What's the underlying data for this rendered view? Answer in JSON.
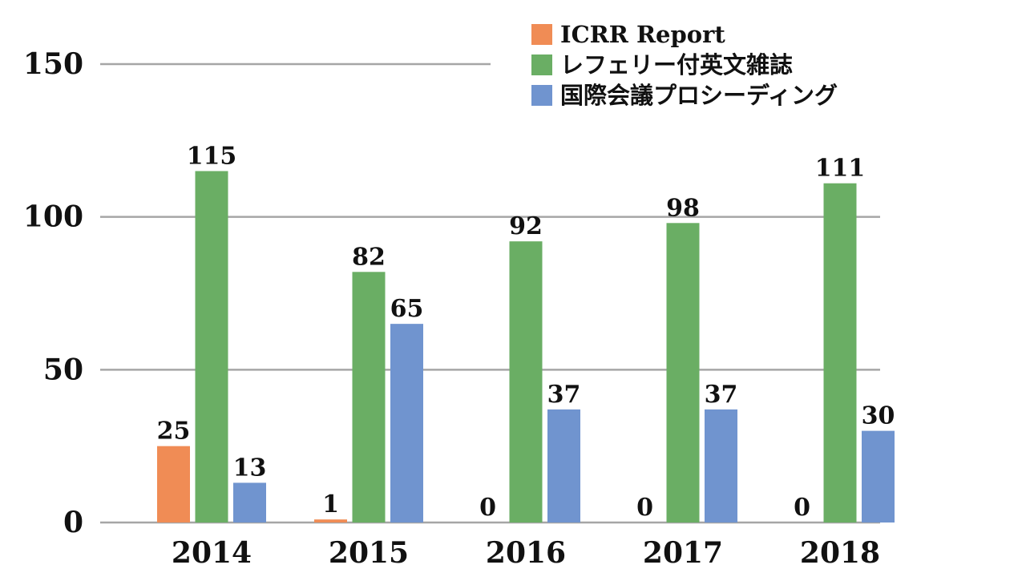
{
  "chart_data": {
    "type": "bar",
    "title": "",
    "xlabel": "",
    "ylabel": "",
    "categories": [
      "2014",
      "2015",
      "2016",
      "2017",
      "2018"
    ],
    "series": [
      {
        "name": "ICRR Report",
        "color": "#F08C55",
        "values": [
          25,
          1,
          0,
          0,
          0
        ]
      },
      {
        "name": "レフェリー付英文雑誌",
        "color": "#6AAE64",
        "values": [
          115,
          82,
          92,
          98,
          111
        ]
      },
      {
        "name": "国際会議プロシーディング",
        "color": "#7094CF",
        "values": [
          13,
          65,
          37,
          37,
          30
        ]
      }
    ],
    "ylim": [
      0,
      150
    ],
    "yticks": [
      0,
      50,
      100,
      150
    ],
    "grid": true,
    "legend_position": "top-right"
  }
}
